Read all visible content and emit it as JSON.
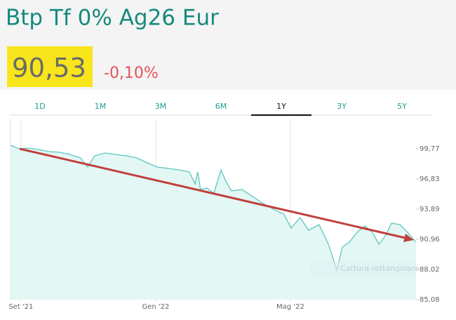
{
  "header": {
    "title": "Btp Tf 0% Ag26 Eur",
    "price": "90,53",
    "change": "-0,10%"
  },
  "tabs": {
    "labels": [
      "1D",
      "1M",
      "3M",
      "6M",
      "1Y",
      "3Y",
      "5Y"
    ],
    "selected": 4
  },
  "overlay_text": "Cattura rettangolare",
  "chart_data": {
    "type": "line",
    "color": "#5cc7bf",
    "fill": "#e3f7f5",
    "x": [
      -0.31,
      -0.06,
      0.21,
      0.52,
      0.83,
      1.15,
      1.46,
      1.77,
      1.98,
      2.19,
      2.5,
      2.81,
      3.13,
      3.44,
      3.75,
      4.06,
      4.38,
      4.69,
      5.0,
      5.17,
      5.25,
      5.33,
      5.52,
      5.73,
      5.94,
      6.08,
      6.25,
      6.56,
      6.88,
      7.19,
      7.5,
      7.81,
      8.02,
      8.29,
      8.54,
      8.85,
      9.13,
      9.38,
      9.54,
      9.75,
      10.0,
      10.21,
      10.42,
      10.63,
      10.83,
      11.0,
      11.25,
      11.46,
      11.73
    ],
    "values": [
      100.11,
      99.77,
      99.84,
      99.7,
      99.5,
      99.43,
      99.22,
      98.88,
      97.99,
      99.09,
      99.36,
      99.22,
      99.09,
      98.88,
      98.4,
      97.99,
      97.86,
      97.72,
      97.51,
      96.35,
      97.51,
      95.8,
      95.94,
      95.46,
      97.72,
      96.62,
      95.67,
      95.8,
      95.12,
      94.44,
      93.89,
      93.41,
      92.04,
      93.07,
      91.84,
      92.39,
      90.47,
      87.94,
      90.19,
      90.68,
      91.7,
      92.25,
      91.7,
      90.47,
      91.36,
      92.52,
      92.39,
      91.7,
      90.68
    ],
    "xlim": [
      -0.31,
      11.73
    ],
    "xticks": [
      {
        "value": 0,
        "label": "Set '21"
      },
      {
        "value": 4,
        "label": "Gen '22"
      },
      {
        "value": 8,
        "label": "Mag '22"
      }
    ],
    "ylim": [
      85.08,
      102.64
    ],
    "yticks": [
      {
        "value": 85.08,
        "label": "85,08"
      },
      {
        "value": 88.02,
        "label": "88,02"
      },
      {
        "value": 90.96,
        "label": "90,96"
      },
      {
        "value": 93.89,
        "label": "93,89"
      },
      {
        "value": 96.83,
        "label": "96,83"
      },
      {
        "value": 99.77,
        "label": "99,77"
      }
    ]
  }
}
